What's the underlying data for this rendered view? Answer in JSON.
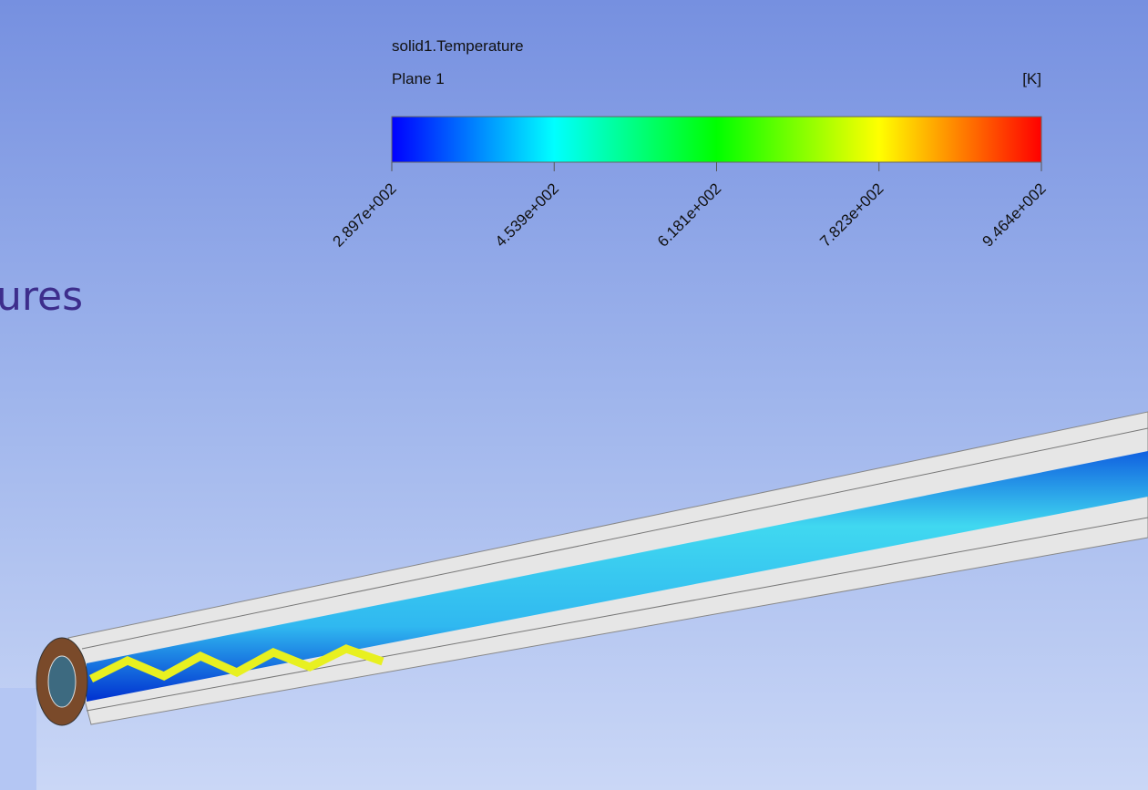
{
  "legend": {
    "title": "solid1.Temperature",
    "subtitle": "Plane 1",
    "unit": "[K]",
    "ticks": [
      "2.897e+002",
      "4.539e+002",
      "6.181e+002",
      "7.823e+002",
      "9.464e+002"
    ]
  },
  "slide_text": "ures"
}
